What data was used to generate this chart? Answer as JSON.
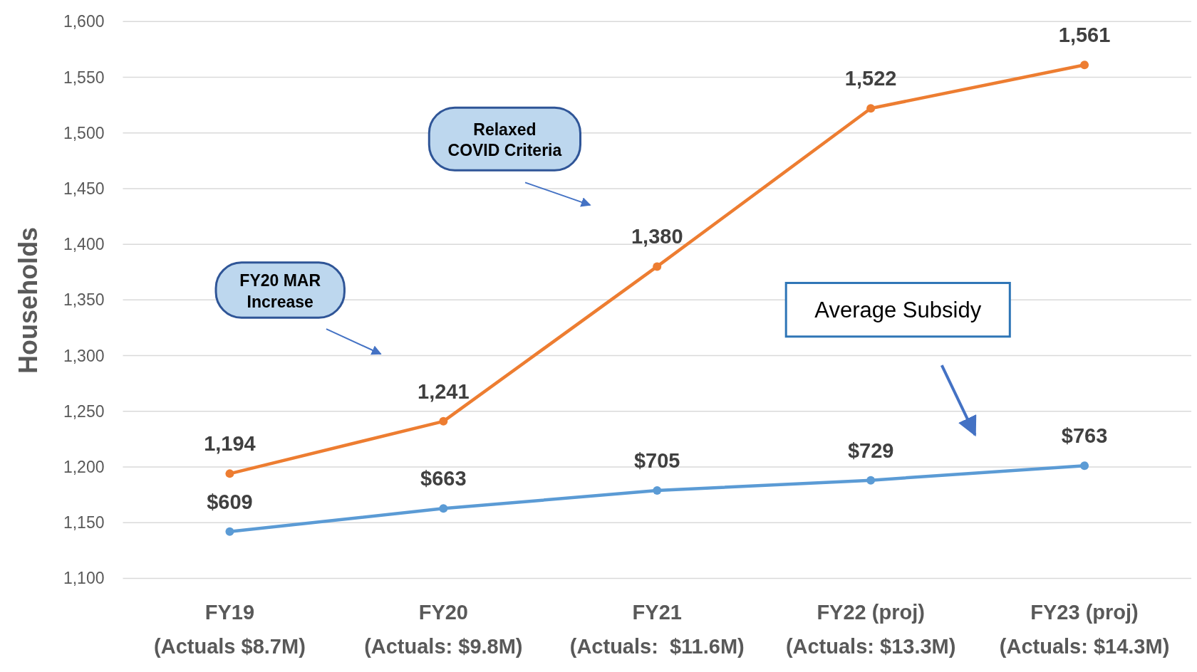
{
  "chart_data": {
    "type": "line",
    "ylabel": "Households",
    "categories": [
      "FY19\n(Actuals $8.7M)",
      "FY20\n(Actuals: $9.8M)",
      "FY21\n(Actuals:  $11.6M)",
      "FY22 (proj)\n(Actuals: $13.3M)",
      "FY23 (proj)\n(Actuals: $14.3M)"
    ],
    "series": [
      {
        "color": "#ed7d31",
        "values": [
          1194,
          1241,
          1380,
          1522,
          1561
        ],
        "value_labels": [
          "1,194",
          "1,241",
          "1,380",
          "1,522",
          "1,561"
        ]
      },
      {
        "color": "#5b9bd5",
        "axis": "y2",
        "values": [
          609,
          663,
          705,
          729,
          763
        ],
        "value_labels": [
          "$609",
          "$663",
          "$705",
          "$729",
          "$763"
        ]
      }
    ],
    "ylim": [
      1100,
      1600
    ],
    "yticks": [
      {
        "value": 1100,
        "label": "1,100"
      },
      {
        "value": 1150,
        "label": "1,150"
      },
      {
        "value": 1200,
        "label": "1,200"
      },
      {
        "value": 1250,
        "label": "1,250"
      },
      {
        "value": 1300,
        "label": "1,300"
      },
      {
        "value": 1350,
        "label": "1,350"
      },
      {
        "value": 1400,
        "label": "1,400"
      },
      {
        "value": 1450,
        "label": "1,450"
      },
      {
        "value": 1500,
        "label": "1,500"
      },
      {
        "value": 1550,
        "label": "1,550"
      },
      {
        "value": 1600,
        "label": "1,600"
      }
    ],
    "y2lim": [
      500,
      1800
    ],
    "grid": "y",
    "marker": "circle",
    "line_style": "solid",
    "annotations": [
      "Relaxed COVID Criteria",
      "FY20 MAR Increase",
      "Average Subsidy"
    ]
  }
}
